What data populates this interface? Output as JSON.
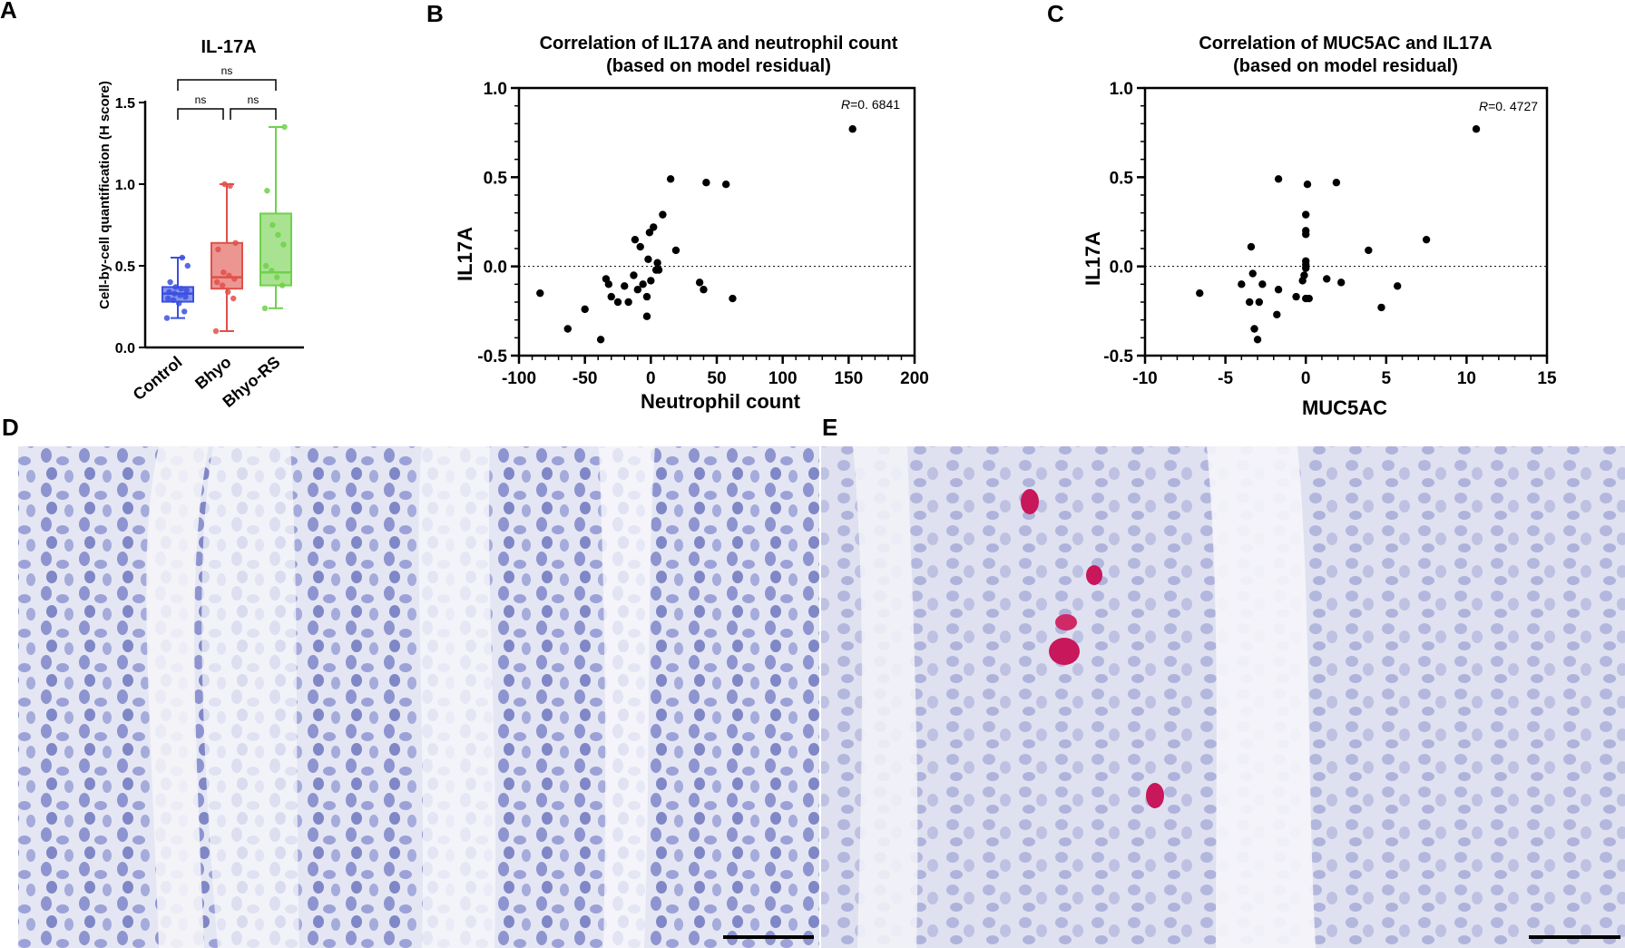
{
  "panels": {
    "A": "A",
    "B": "B",
    "C": "C",
    "D": "D",
    "E": "E"
  },
  "colors": {
    "control": "#3a4fe0",
    "bhyo": "#e0504a",
    "bhyo_rs": "#6fd14a",
    "point": "#000000",
    "micro_bg": "#e6e8f4",
    "stain": "#c8175a"
  },
  "chart_data": [
    {
      "id": "A",
      "type": "box",
      "title": "IL-17A",
      "ylabel": "Cell-by-cell quantification (H score)",
      "xlabel": "",
      "ylim": [
        0,
        1.5
      ],
      "yticks": [
        "0.0",
        "0.5",
        "1.0",
        "1.5"
      ],
      "categories": [
        "Control",
        "Bhyo",
        "Bhyo-RS"
      ],
      "boxes": [
        {
          "name": "Control",
          "min": 0.18,
          "q1": 0.28,
          "median": 0.33,
          "q3": 0.37,
          "max": 0.55,
          "points": [
            0.18,
            0.22,
            0.27,
            0.29,
            0.3,
            0.31,
            0.32,
            0.33,
            0.34,
            0.35,
            0.36,
            0.37,
            0.4,
            0.5,
            0.55
          ]
        },
        {
          "name": "Bhyo",
          "min": 0.1,
          "q1": 0.36,
          "median": 0.43,
          "q3": 0.64,
          "max": 1.0,
          "points": [
            0.1,
            0.3,
            0.34,
            0.38,
            0.4,
            0.42,
            0.44,
            0.46,
            0.6,
            0.64,
            0.99,
            1.0
          ]
        },
        {
          "name": "Bhyo-RS",
          "min": 0.24,
          "q1": 0.38,
          "median": 0.46,
          "q3": 0.82,
          "max": 1.35,
          "points": [
            0.24,
            0.38,
            0.43,
            0.47,
            0.5,
            0.63,
            0.69,
            0.75,
            0.96,
            1.35
          ]
        }
      ],
      "significance": [
        {
          "from": 0,
          "to": 2,
          "label": "ns"
        },
        {
          "from": 0,
          "to": 1,
          "label": "ns"
        },
        {
          "from": 1,
          "to": 2,
          "label": "ns"
        }
      ]
    },
    {
      "id": "B",
      "type": "scatter",
      "title_line1": "Correlation of IL17A and neutrophil count",
      "title_line2": "(based on model residual)",
      "xlabel": "Neutrophil count",
      "ylabel": "IL17A",
      "xlim": [
        -100,
        200
      ],
      "ylim": [
        -0.5,
        1.0
      ],
      "xticks": [
        "-100",
        "-50",
        "0",
        "50",
        "100",
        "150",
        "200"
      ],
      "yticks": [
        "-0.5",
        "0.0",
        "0.5",
        "1.0"
      ],
      "r_prefix": "R",
      "r_value": "=0. 6841",
      "points": [
        [
          -84,
          -0.15
        ],
        [
          -63,
          -0.35
        ],
        [
          -50,
          -0.24
        ],
        [
          -38,
          -0.41
        ],
        [
          -34,
          -0.07
        ],
        [
          -32,
          -0.1
        ],
        [
          -30,
          -0.17
        ],
        [
          -25,
          -0.2
        ],
        [
          -20,
          -0.11
        ],
        [
          -17,
          -0.2
        ],
        [
          -13,
          -0.05
        ],
        [
          -12,
          0.15
        ],
        [
          -10,
          -0.13
        ],
        [
          -8,
          0.11
        ],
        [
          -6,
          -0.1
        ],
        [
          -3,
          -0.28
        ],
        [
          -2,
          0.04
        ],
        [
          -3,
          -0.17
        ],
        [
          -1,
          0.19
        ],
        [
          0,
          -0.08
        ],
        [
          2,
          0.22
        ],
        [
          4,
          -0.02
        ],
        [
          5,
          0.02
        ],
        [
          6,
          -0.02
        ],
        [
          9,
          0.29
        ],
        [
          15,
          0.49
        ],
        [
          19,
          0.09
        ],
        [
          37,
          -0.09
        ],
        [
          42,
          0.47
        ],
        [
          40,
          -0.13
        ],
        [
          57,
          0.46
        ],
        [
          62,
          -0.18
        ],
        [
          153,
          0.77
        ]
      ]
    },
    {
      "id": "C",
      "type": "scatter",
      "title_line1": "Correlation of MUC5AC and IL17A",
      "title_line2": "(based on model residual)",
      "xlabel": "MUC5AC",
      "ylabel": "IL17A",
      "xlim": [
        -10,
        15
      ],
      "ylim": [
        -0.5,
        1.0
      ],
      "xticks": [
        "-10",
        "-5",
        "0",
        "5",
        "10",
        "15"
      ],
      "yticks": [
        "-0.5",
        "0.0",
        "0.5",
        "1.0"
      ],
      "r_prefix": "R",
      "r_value": "=0. 4727",
      "points": [
        [
          -6.6,
          -0.15
        ],
        [
          -4.0,
          -0.1
        ],
        [
          -3.5,
          -0.2
        ],
        [
          -3.4,
          0.11
        ],
        [
          -3.3,
          -0.04
        ],
        [
          -3.2,
          -0.35
        ],
        [
          -3.0,
          -0.41
        ],
        [
          -2.9,
          -0.2
        ],
        [
          -2.7,
          -0.1
        ],
        [
          -1.8,
          -0.27
        ],
        [
          -1.7,
          -0.13
        ],
        [
          -1.7,
          0.49
        ],
        [
          -0.6,
          -0.17
        ],
        [
          -0.2,
          -0.08
        ],
        [
          -0.1,
          -0.05
        ],
        [
          0.0,
          0.29
        ],
        [
          0.0,
          0.2
        ],
        [
          0.0,
          0.18
        ],
        [
          0.0,
          0.03
        ],
        [
          0.0,
          0.01
        ],
        [
          0.0,
          -0.01
        ],
        [
          0.0,
          -0.18
        ],
        [
          0.1,
          0.46
        ],
        [
          0.2,
          -0.18
        ],
        [
          1.3,
          -0.07
        ],
        [
          1.9,
          0.47
        ],
        [
          2.2,
          -0.09
        ],
        [
          3.9,
          0.09
        ],
        [
          4.7,
          -0.23
        ],
        [
          5.7,
          -0.11
        ],
        [
          7.5,
          0.15
        ],
        [
          10.6,
          0.77
        ]
      ]
    }
  ],
  "micrographs": {
    "D": {
      "stained_cells": []
    },
    "E": {
      "stained_cells": 5
    }
  }
}
